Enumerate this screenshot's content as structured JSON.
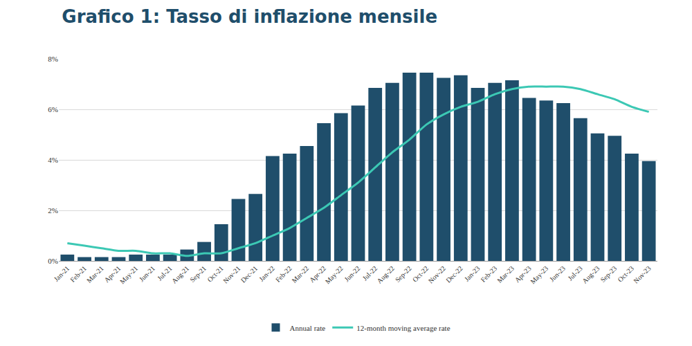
{
  "chart_data": {
    "type": "bar",
    "title": "Grafico 1: Tasso di inflazione mensile",
    "categories": [
      "Jan-21",
      "Feb-21",
      "Mar-21",
      "Apr-21",
      "May-21",
      "Jun-21",
      "Jul-21",
      "Aug-21",
      "Sep-21",
      "Oct-21",
      "Nov-21",
      "Dec-21",
      "Jan-22",
      "Feb-22",
      "Mar-22",
      "Apr-22",
      "May-22",
      "Jun-22",
      "Jul-22",
      "Aug-22",
      "Sep-22",
      "Oct-22",
      "Nov-22",
      "Dec-22",
      "Jan-23",
      "Feb-23",
      "Mar-23",
      "Apr-23",
      "May-23",
      "Jun-23",
      "Jul-23",
      "Aug-23",
      "Sep-23",
      "Oct-23",
      "Nov-23"
    ],
    "series": [
      {
        "name": "Annual rate",
        "type": "bar",
        "color": "#1f4e6b",
        "values": [
          0.25,
          0.15,
          0.15,
          0.15,
          0.25,
          0.25,
          0.25,
          0.45,
          0.75,
          1.45,
          2.45,
          2.65,
          4.15,
          4.25,
          4.55,
          5.45,
          5.85,
          6.15,
          6.85,
          7.05,
          7.45,
          7.45,
          7.25,
          7.35,
          6.85,
          7.05,
          7.15,
          6.45,
          6.35,
          6.25,
          5.65,
          5.05,
          4.95,
          4.25,
          3.95
        ]
      },
      {
        "name": "12-month moving average rate",
        "type": "line",
        "color": "#3cc8b4",
        "values": [
          0.7,
          0.6,
          0.5,
          0.4,
          0.4,
          0.3,
          0.3,
          0.2,
          0.3,
          0.3,
          0.5,
          0.7,
          1.0,
          1.3,
          1.7,
          2.1,
          2.6,
          3.1,
          3.7,
          4.3,
          4.8,
          5.4,
          5.8,
          6.1,
          6.3,
          6.6,
          6.8,
          6.9,
          6.9,
          6.9,
          6.8,
          6.6,
          6.4,
          6.1,
          5.9
        ]
      }
    ],
    "ylim": [
      0,
      8
    ],
    "yticks": [
      {
        "value": 0,
        "label": "0%"
      },
      {
        "value": 2,
        "label": "2%"
      },
      {
        "value": 4,
        "label": "4%"
      },
      {
        "value": 6,
        "label": "6%"
      },
      {
        "value": 8,
        "label": "8%"
      }
    ],
    "grid": true,
    "legend": "bottom"
  }
}
